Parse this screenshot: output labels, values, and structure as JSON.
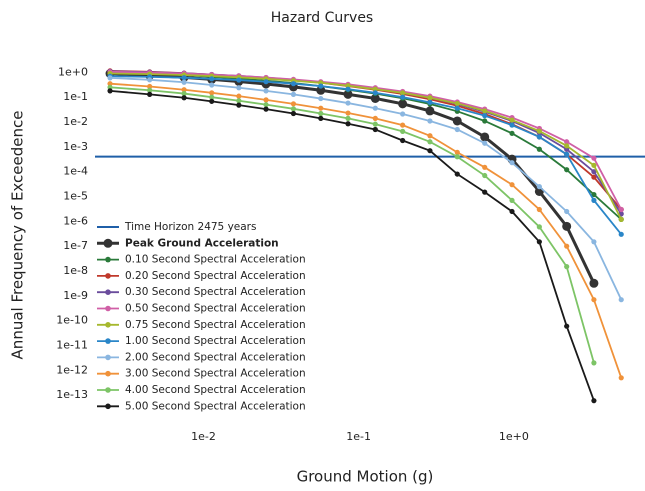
{
  "chart_data": {
    "type": "line",
    "title": "Hazard Curves",
    "xlabel": "Ground Motion (g)",
    "ylabel": "Annual Frequency of Exceedence",
    "xscale": "log",
    "yscale": "log",
    "grid": false,
    "legend": "lower left",
    "xlim": [
      0.002,
      7
    ],
    "ylim": [
      1e-14,
      5
    ],
    "xticks": [
      {
        "value": 0.01,
        "label": "1e-2"
      },
      {
        "value": 0.1,
        "label": "1e-1"
      },
      {
        "value": 1,
        "label": "1e+0"
      }
    ],
    "yticks": [
      {
        "value": 1,
        "label": "1e+0"
      },
      {
        "value": 0.1,
        "label": "1e-1"
      },
      {
        "value": 0.01,
        "label": "1e-2"
      },
      {
        "value": 0.001,
        "label": "1e-3"
      },
      {
        "value": 0.0001,
        "label": "1e-4"
      },
      {
        "value": 1e-05,
        "label": "1e-5"
      },
      {
        "value": 1e-06,
        "label": "1e-6"
      },
      {
        "value": 1e-07,
        "label": "1e-7"
      },
      {
        "value": 1e-08,
        "label": "1e-8"
      },
      {
        "value": 1e-09,
        "label": "1e-9"
      },
      {
        "value": 1e-10,
        "label": "1e-10"
      },
      {
        "value": 1e-11,
        "label": "1e-11"
      },
      {
        "value": 1e-12,
        "label": "1e-12"
      },
      {
        "value": 1e-13,
        "label": "1e-13"
      }
    ],
    "time_horizon": {
      "name": "Time Horizon 2475 years",
      "value": 0.000404,
      "color": "#1f5fa8"
    },
    "x": [
      0.0025,
      0.0045,
      0.0075,
      0.0113,
      0.0169,
      0.0253,
      0.038,
      0.057,
      0.0854,
      0.128,
      0.192,
      0.288,
      0.432,
      0.649,
      0.973,
      1.46,
      2.19,
      3.28,
      4.92
    ],
    "series": [
      {
        "name": "Peak Ground Acceleration",
        "color": "#333333",
        "linewidth": 3,
        "values": [
          0.89,
          0.76,
          0.63,
          0.52,
          0.43,
          0.34,
          0.26,
          0.19,
          0.13,
          0.089,
          0.054,
          0.028,
          0.011,
          0.0025,
          0.00032,
          1.6e-05,
          6.3e-07,
          3.2e-09,
          null
        ]
      },
      {
        "name": "0.10 Second Spectral Acceleration",
        "color": "#2a7a3a",
        "values": [
          1.0,
          0.9,
          0.78,
          0.66,
          0.56,
          0.46,
          0.37,
          0.28,
          0.2,
          0.14,
          0.091,
          0.053,
          0.027,
          0.011,
          0.0035,
          0.0008,
          0.00012,
          1.2e-05,
          1.2e-06
        ]
      },
      {
        "name": "0.20 Second Spectral Acceleration",
        "color": "#c0392b",
        "values": [
          1.15,
          1.05,
          0.93,
          0.81,
          0.7,
          0.59,
          0.48,
          0.38,
          0.28,
          0.2,
          0.135,
          0.083,
          0.045,
          0.021,
          0.0082,
          0.0025,
          0.0005,
          6e-05,
          3e-06
        ]
      },
      {
        "name": "0.30 Second Spectral Acceleration",
        "color": "#6a4c9c",
        "values": [
          1.1,
          1.02,
          0.92,
          0.82,
          0.72,
          0.61,
          0.5,
          0.4,
          0.3,
          0.22,
          0.15,
          0.095,
          0.053,
          0.026,
          0.011,
          0.0036,
          0.0008,
          0.0001,
          2e-06
        ]
      },
      {
        "name": "0.50 Second Spectral Acceleration",
        "color": "#d05fa6",
        "values": [
          1.05,
          0.98,
          0.9,
          0.81,
          0.72,
          0.62,
          0.52,
          0.42,
          0.33,
          0.24,
          0.17,
          0.11,
          0.064,
          0.033,
          0.015,
          0.0055,
          0.0016,
          0.00035,
          3e-06
        ]
      },
      {
        "name": "0.75 Second Spectral Acceleration",
        "color": "#a6b82e",
        "values": [
          0.9,
          0.85,
          0.78,
          0.71,
          0.63,
          0.55,
          0.46,
          0.38,
          0.29,
          0.21,
          0.15,
          0.095,
          0.056,
          0.028,
          0.012,
          0.0043,
          0.0011,
          0.00018,
          1.2e-06
        ]
      },
      {
        "name": "1.00 Second Spectral Acceleration",
        "color": "#2a86c8",
        "values": [
          0.7,
          0.66,
          0.61,
          0.55,
          0.49,
          0.42,
          0.35,
          0.28,
          0.21,
          0.15,
          0.1,
          0.062,
          0.036,
          0.018,
          0.0075,
          0.0025,
          0.0005,
          7e-06,
          3e-07
        ]
      },
      {
        "name": "2.00 Second Spectral Acceleration",
        "color": "#8ab6e0",
        "values": [
          0.6,
          0.5,
          0.4,
          0.31,
          0.24,
          0.18,
          0.13,
          0.088,
          0.058,
          0.036,
          0.021,
          0.011,
          0.005,
          0.0014,
          0.00023,
          2.5e-05,
          2.5e-06,
          1.5e-07,
          7e-10
        ]
      },
      {
        "name": "3.00 Second Spectral Acceleration",
        "color": "#f0923a",
        "values": [
          0.35,
          0.27,
          0.2,
          0.15,
          0.11,
          0.078,
          0.054,
          0.036,
          0.023,
          0.014,
          0.0075,
          0.0028,
          0.0006,
          0.00015,
          3e-05,
          3e-06,
          1e-07,
          7e-10,
          5e-13
        ]
      },
      {
        "name": "4.00 Second Spectral Acceleration",
        "color": "#7dc466",
        "values": [
          0.25,
          0.19,
          0.14,
          0.1,
          0.072,
          0.05,
          0.034,
          0.022,
          0.014,
          0.0082,
          0.0042,
          0.0016,
          0.0004,
          7e-05,
          7e-06,
          6e-07,
          1.5e-08,
          2e-12,
          null
        ]
      },
      {
        "name": "5.00 Second Spectral Acceleration",
        "color": "#1a1a1a",
        "values": [
          0.18,
          0.13,
          0.095,
          0.068,
          0.048,
          0.033,
          0.022,
          0.014,
          0.0085,
          0.005,
          0.0018,
          0.0007,
          8e-05,
          1.5e-05,
          2.5e-06,
          1.5e-07,
          6e-11,
          6e-14,
          null
        ]
      }
    ]
  }
}
